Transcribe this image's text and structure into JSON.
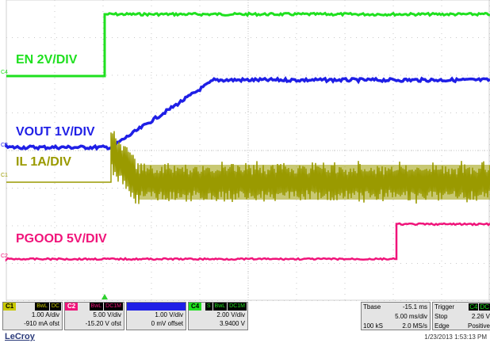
{
  "traces": [
    {
      "id": "en",
      "channel_marker": "C4",
      "label": "EN 2V/DIV",
      "color": "#1fe01f"
    },
    {
      "id": "vout",
      "channel_marker": "C3",
      "label": "VOUT 1V/DIV",
      "color": "#1f1fe6"
    },
    {
      "id": "il",
      "channel_marker": "C1",
      "label": "IL 1A/DIV",
      "color": "#9a9a00"
    },
    {
      "id": "pgood",
      "channel_marker": "C2",
      "label": "PGOOD 5V/DIV",
      "color": "#f0147a"
    }
  ],
  "channels": [
    {
      "num": "C1",
      "tags": [
        "BwL",
        "DC"
      ],
      "line1": "1.00 A/div",
      "line2": "-910 mA ofst",
      "color": "#c8c800"
    },
    {
      "num": "C2",
      "tags": [
        "BwL",
        "DC1M"
      ],
      "line1": "5.00 V/div",
      "line2": "-15.20 V ofst",
      "color": "#f0147a"
    },
    {
      "num": "",
      "tags": [
        "",
        ""
      ],
      "line1": "1.00 V/div",
      "line2": "0 mV offset",
      "color": "#1f1fe6"
    },
    {
      "num": "C4",
      "tags": [
        "S",
        "BwL",
        "DC1M"
      ],
      "line1": "2.00 V/div",
      "line2": "3.9400 V",
      "color": "#1fe01f"
    }
  ],
  "timebase": {
    "label": "Tbase",
    "offset": "-15.1 ms",
    "per_div": "5.00 ms/div",
    "samples": "100 kS",
    "rate": "2.0 MS/s"
  },
  "trigger": {
    "label": "Trigger",
    "source": "C4",
    "coupling": "DC",
    "mode": "Stop",
    "level": "2.26 V",
    "type": "Edge",
    "slope": "Positive"
  },
  "brand": "LeCroy",
  "timestamp": "1/23/2013 1:53:13 PM"
}
